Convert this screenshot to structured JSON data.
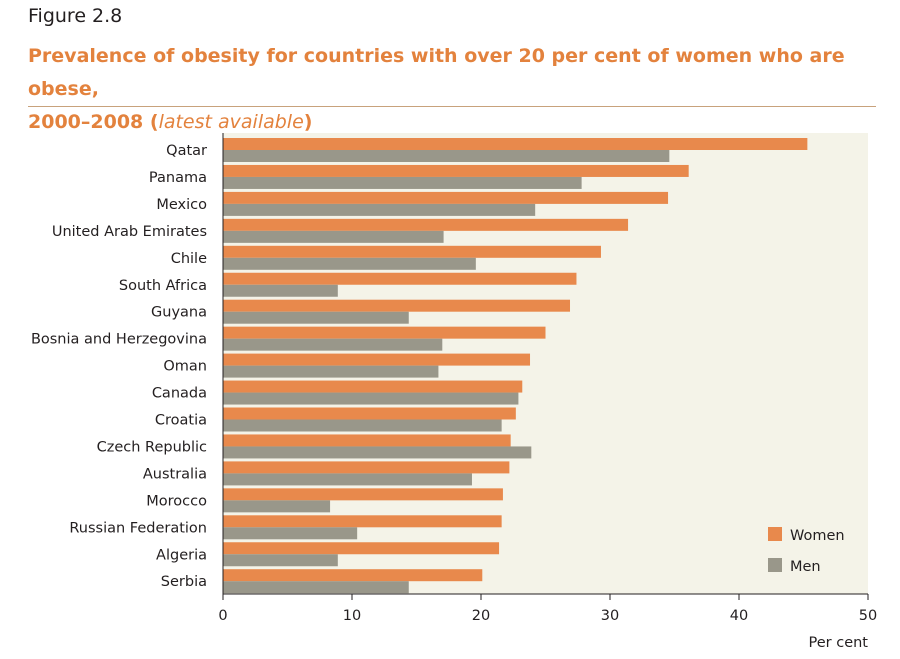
{
  "figure_label": "Figure 2.8",
  "title_main": "Prevalence of obesity for countries with over 20 per cent of women who are obese,",
  "title_line2_main": "2000–2008 (",
  "title_line2_italic": "latest available",
  "title_line2_close": ")",
  "colors": {
    "women": "#e8894c",
    "men": "#99978a",
    "plot_bg": "#f4f3e8",
    "title": "#e3823d",
    "rule": "#c8a27c"
  },
  "chart_data": {
    "type": "bar",
    "orientation": "horizontal",
    "categories": [
      "Qatar",
      "Panama",
      "Mexico",
      "United Arab Emirates",
      "Chile",
      "South Africa",
      "Guyana",
      "Bosnia and Herzegovina",
      "Oman",
      "Canada",
      "Croatia",
      "Czech Republic",
      "Australia",
      "Morocco",
      "Russian Federation",
      "Algeria",
      "Serbia"
    ],
    "series": [
      {
        "name": "Women",
        "values": [
          45.3,
          36.1,
          34.5,
          31.4,
          29.3,
          27.4,
          26.9,
          25.0,
          23.8,
          23.2,
          22.7,
          22.3,
          22.2,
          21.7,
          21.6,
          21.4,
          20.1
        ]
      },
      {
        "name": "Men",
        "values": [
          34.6,
          27.8,
          24.2,
          17.1,
          19.6,
          8.9,
          14.4,
          17.0,
          16.7,
          22.9,
          21.6,
          23.9,
          19.3,
          8.3,
          10.4,
          8.9,
          14.4
        ]
      }
    ],
    "xlim": [
      0,
      50
    ],
    "xticks": [
      0,
      10,
      20,
      30,
      40,
      50
    ],
    "xlabel": "Per cent",
    "legend_position": "bottom-right",
    "grid": false
  }
}
